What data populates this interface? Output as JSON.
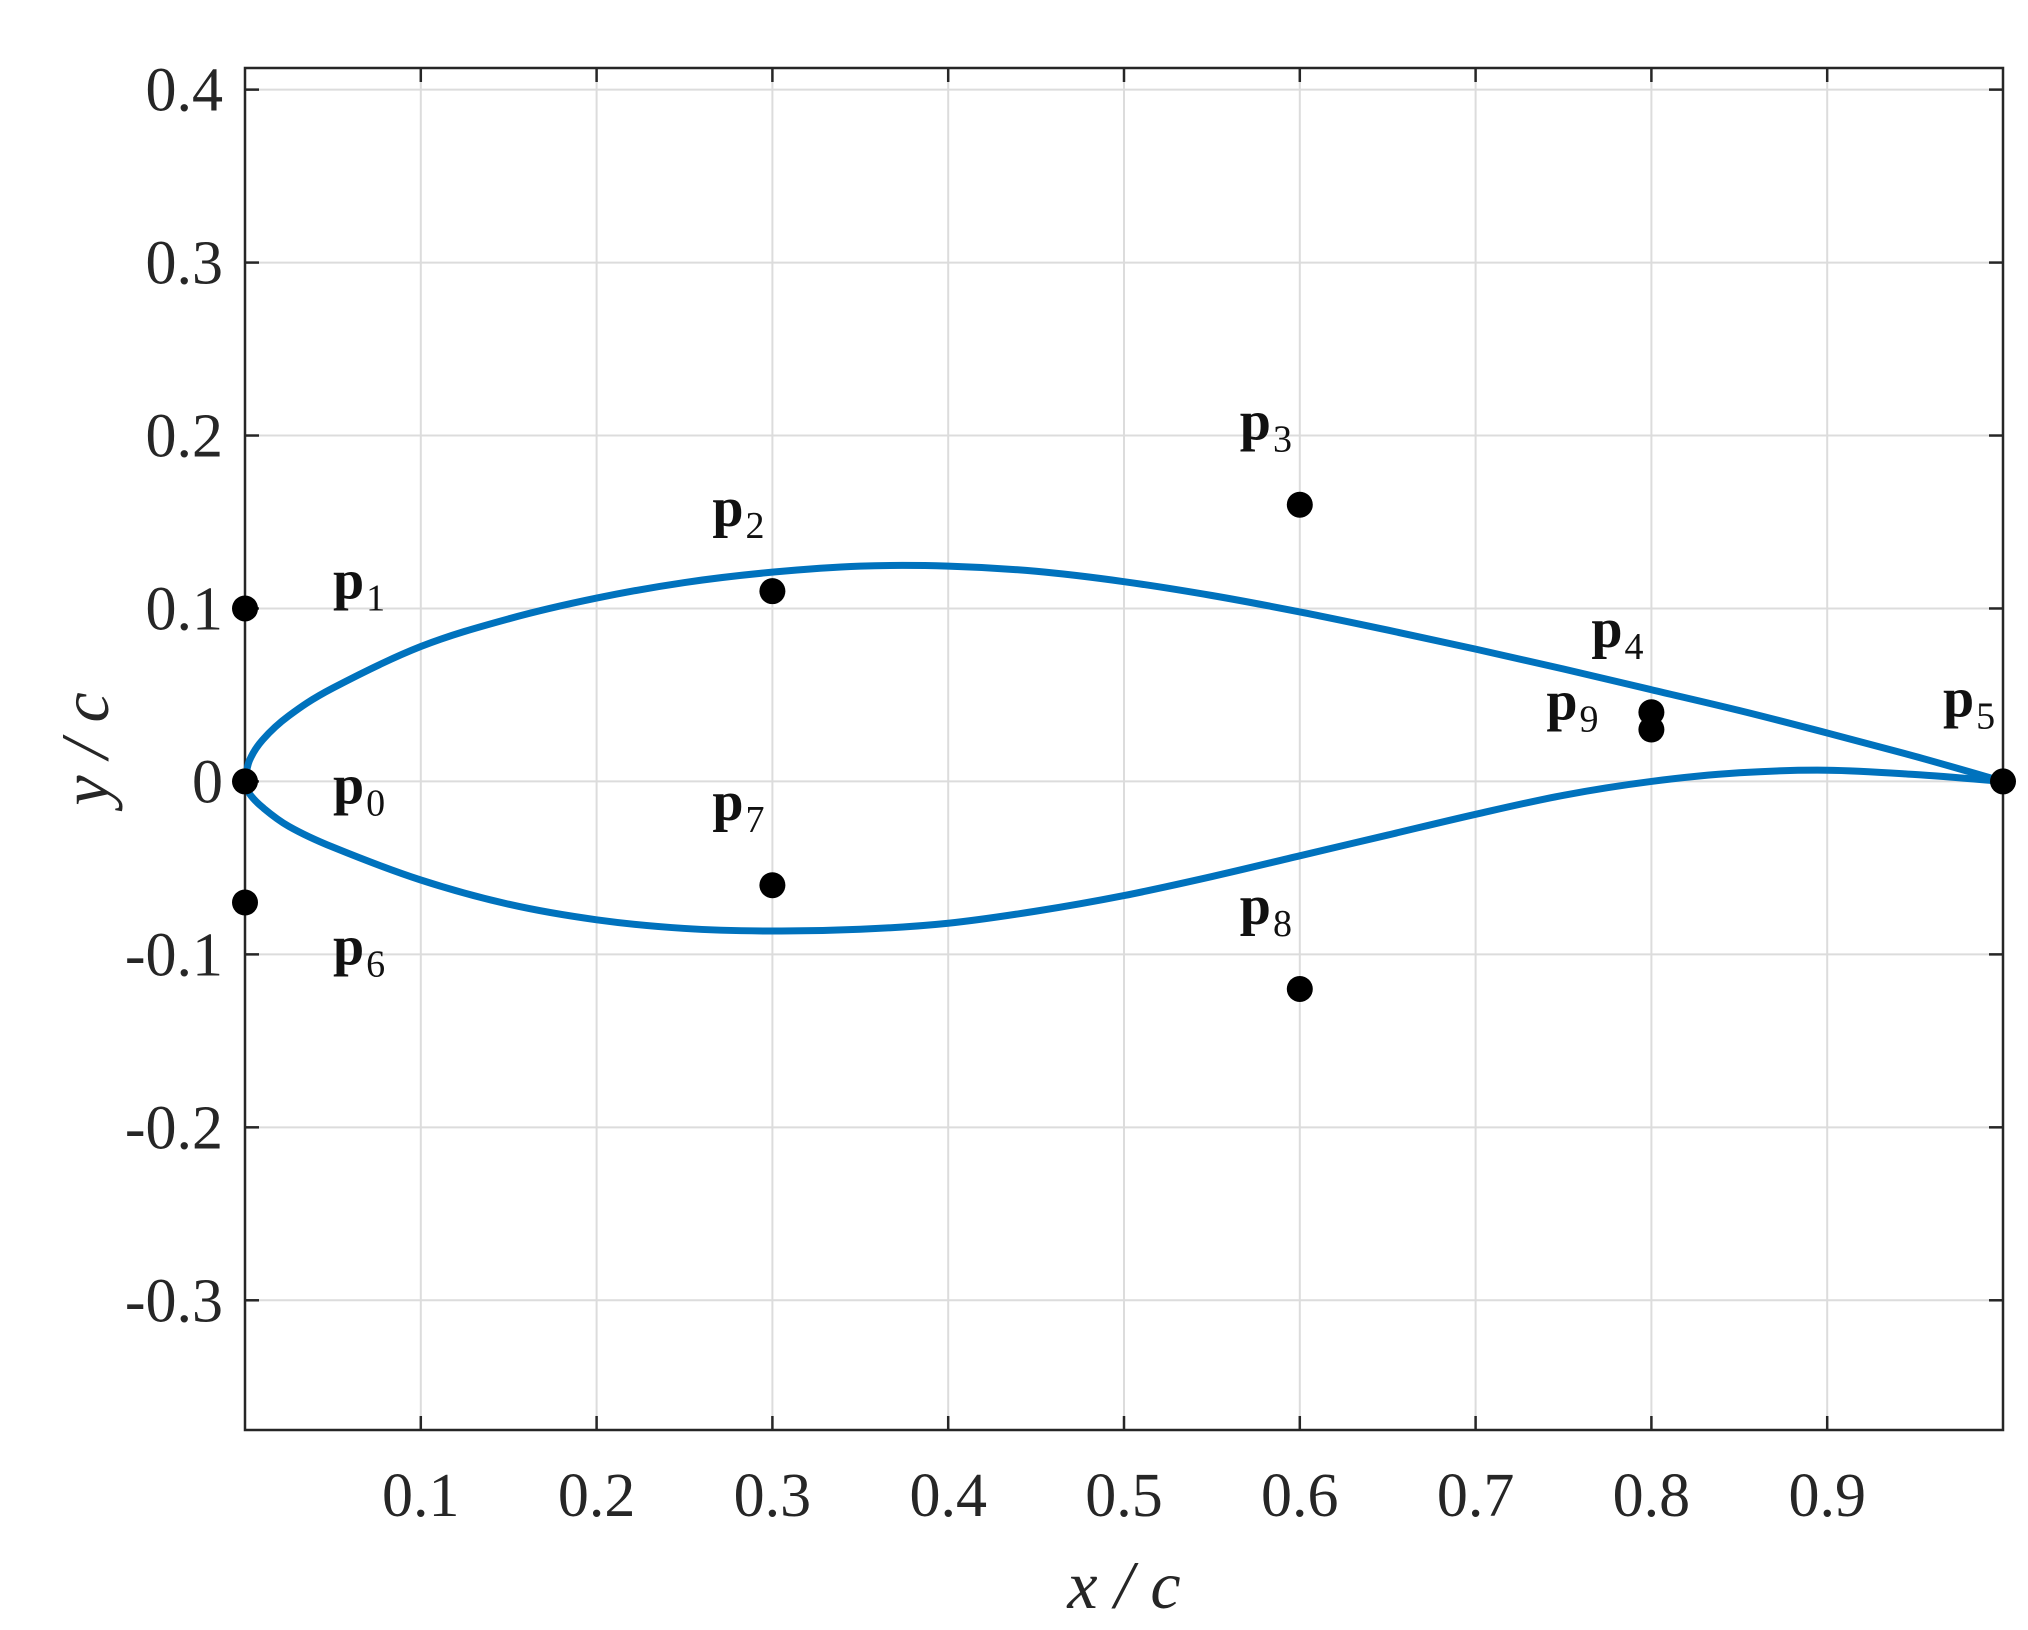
{
  "chart_data": {
    "type": "scatter",
    "xlabel": "x / c",
    "ylabel": "y / c",
    "xlim": [
      0,
      1
    ],
    "ylim": [
      -0.375,
      0.4125
    ],
    "grid": true,
    "xticks": [
      0.1,
      0.2,
      0.3,
      0.4,
      0.5,
      0.6,
      0.7,
      0.8,
      0.9
    ],
    "xtick_labels": [
      "0.1",
      "0.2",
      "0.3",
      "0.4",
      "0.5",
      "0.6",
      "0.7",
      "0.8",
      "0.9"
    ],
    "yticks": [
      0.4,
      0.3,
      0.2,
      0.1,
      0,
      -0.1,
      -0.2,
      -0.3
    ],
    "ytick_labels": [
      "0.4",
      "0.3",
      "0.2",
      "0.1",
      "0",
      "-0.1",
      "-0.2",
      "-0.3"
    ],
    "curve_color": "#0072BD",
    "point_color": "#000000",
    "control_points": [
      {
        "label": "p",
        "subscript": "0",
        "x": 0.0,
        "y": 0.0,
        "label_pos": "right"
      },
      {
        "label": "p",
        "subscript": "1",
        "x": 0.0,
        "y": 0.1,
        "label_pos": "upper-right"
      },
      {
        "label": "p",
        "subscript": "2",
        "x": 0.3,
        "y": 0.11,
        "label_pos": "upper-left"
      },
      {
        "label": "p",
        "subscript": "3",
        "x": 0.6,
        "y": 0.16,
        "label_pos": "upper-left"
      },
      {
        "label": "p",
        "subscript": "4",
        "x": 0.8,
        "y": 0.04,
        "label_pos": "upper-left"
      },
      {
        "label": "p",
        "subscript": "5",
        "x": 1.0,
        "y": 0.0,
        "label_pos": "upper-left"
      },
      {
        "label": "p",
        "subscript": "6",
        "x": 0.0,
        "y": -0.07,
        "label_pos": "lower-right"
      },
      {
        "label": "p",
        "subscript": "7",
        "x": 0.3,
        "y": -0.06,
        "label_pos": "upper-left"
      },
      {
        "label": "p",
        "subscript": "8",
        "x": 0.6,
        "y": -0.12,
        "label_pos": "upper-left"
      },
      {
        "label": "p",
        "subscript": "9",
        "x": 0.8,
        "y": 0.03,
        "label_pos": "lower-left"
      }
    ],
    "upper_surface": [
      [
        0.0,
        0.0
      ],
      [
        0.0025,
        0.012
      ],
      [
        0.01,
        0.024
      ],
      [
        0.025,
        0.038
      ],
      [
        0.05,
        0.054
      ],
      [
        0.1,
        0.078
      ],
      [
        0.15,
        0.094
      ],
      [
        0.2,
        0.106
      ],
      [
        0.25,
        0.115
      ],
      [
        0.3,
        0.121
      ],
      [
        0.35,
        0.1245
      ],
      [
        0.4,
        0.1245
      ],
      [
        0.45,
        0.1215
      ],
      [
        0.5,
        0.1155
      ],
      [
        0.55,
        0.1075
      ],
      [
        0.6,
        0.098
      ],
      [
        0.65,
        0.0875
      ],
      [
        0.7,
        0.0765
      ],
      [
        0.75,
        0.065
      ],
      [
        0.8,
        0.053
      ],
      [
        0.85,
        0.041
      ],
      [
        0.9,
        0.028
      ],
      [
        0.95,
        0.0145
      ],
      [
        1.0,
        0.0
      ]
    ],
    "lower_surface": [
      [
        0.0,
        0.0
      ],
      [
        0.0025,
        -0.007
      ],
      [
        0.01,
        -0.015
      ],
      [
        0.025,
        -0.026
      ],
      [
        0.05,
        -0.038
      ],
      [
        0.1,
        -0.057
      ],
      [
        0.15,
        -0.071
      ],
      [
        0.2,
        -0.08
      ],
      [
        0.25,
        -0.085
      ],
      [
        0.3,
        -0.0865
      ],
      [
        0.35,
        -0.0855
      ],
      [
        0.4,
        -0.082
      ],
      [
        0.45,
        -0.075
      ],
      [
        0.5,
        -0.066
      ],
      [
        0.55,
        -0.055
      ],
      [
        0.6,
        -0.043
      ],
      [
        0.65,
        -0.031
      ],
      [
        0.7,
        -0.019
      ],
      [
        0.75,
        -0.008
      ],
      [
        0.8,
        0.0
      ],
      [
        0.85,
        0.005
      ],
      [
        0.9,
        0.0065
      ],
      [
        0.95,
        0.004
      ],
      [
        1.0,
        0.0
      ]
    ]
  }
}
